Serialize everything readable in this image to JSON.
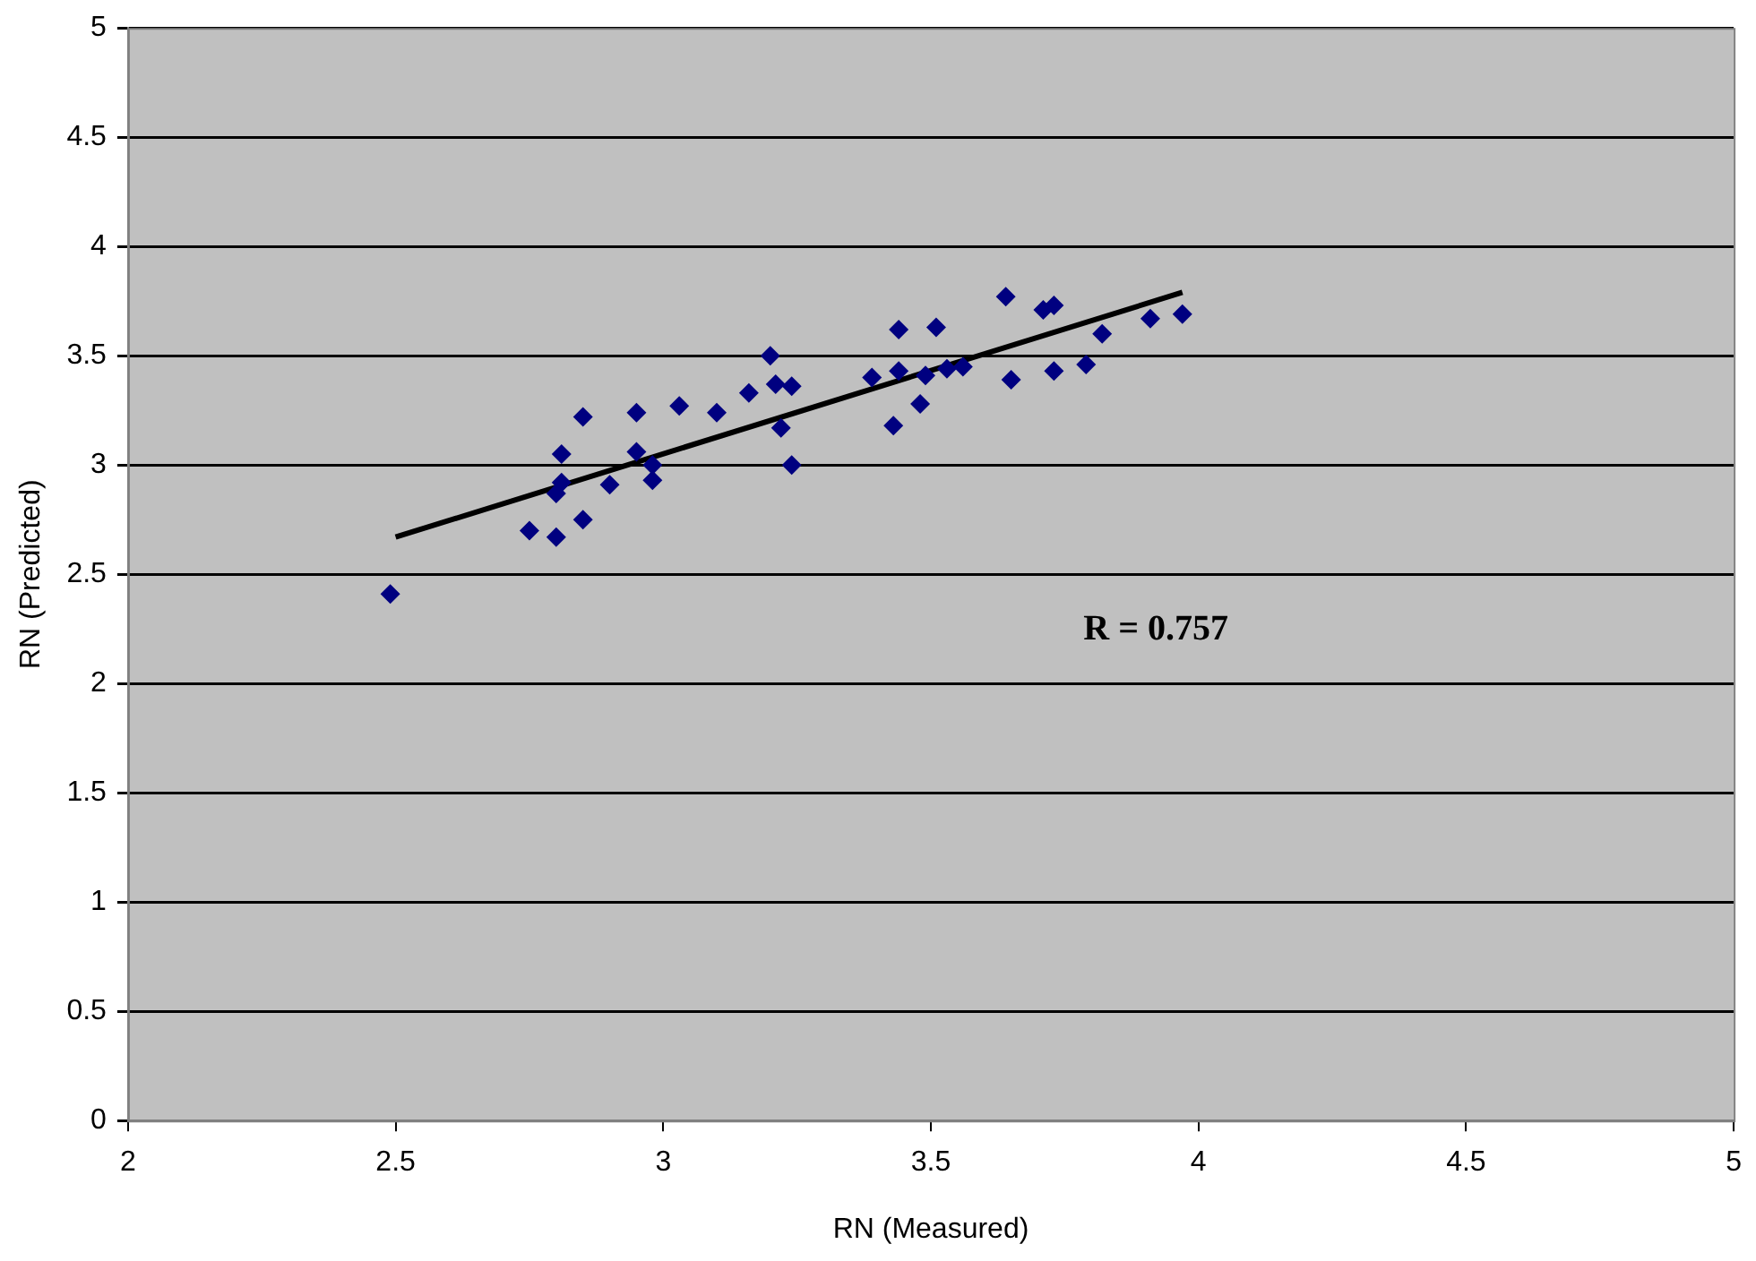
{
  "chart_data": {
    "type": "scatter",
    "xlabel": "RN (Measured)",
    "ylabel": "RN (Predicted)",
    "xlim": [
      2,
      5
    ],
    "xticks": [
      2,
      2.5,
      3,
      3.5,
      4,
      4.5,
      5
    ],
    "ylim": [
      0,
      5
    ],
    "yticks": [
      0,
      0.5,
      1,
      1.5,
      2,
      2.5,
      3,
      3.5,
      4,
      4.5,
      5
    ],
    "grid": "y",
    "marker": "diamond",
    "annotations": [
      "R = 0.757"
    ],
    "series": [
      {
        "type": "scatter",
        "color": "#000080",
        "x": [
          2.49,
          2.75,
          2.8,
          2.8,
          2.81,
          2.81,
          2.85,
          2.85,
          2.9,
          2.95,
          2.95,
          2.98,
          2.98,
          3.03,
          3.1,
          3.16,
          3.2,
          3.21,
          3.22,
          3.24,
          3.24,
          3.39,
          3.43,
          3.44,
          3.44,
          3.48,
          3.49,
          3.51,
          3.53,
          3.56,
          3.64,
          3.65,
          3.71,
          3.73,
          3.73,
          3.79,
          3.82,
          3.91,
          3.97
        ],
        "values": [
          2.41,
          2.7,
          2.67,
          2.87,
          2.92,
          3.05,
          2.75,
          3.22,
          2.91,
          3.24,
          3.06,
          2.93,
          3.0,
          3.27,
          3.24,
          3.33,
          3.5,
          3.37,
          3.17,
          3.36,
          3.0,
          3.4,
          3.18,
          3.43,
          3.62,
          3.28,
          3.41,
          3.63,
          3.44,
          3.45,
          3.77,
          3.39,
          3.71,
          3.73,
          3.43,
          3.46,
          3.6,
          3.67,
          3.69
        ]
      },
      {
        "type": "line",
        "color": "#000000",
        "marker": "none",
        "x": [
          2.5,
          3.97
        ],
        "values": [
          2.67,
          3.79
        ]
      }
    ]
  }
}
